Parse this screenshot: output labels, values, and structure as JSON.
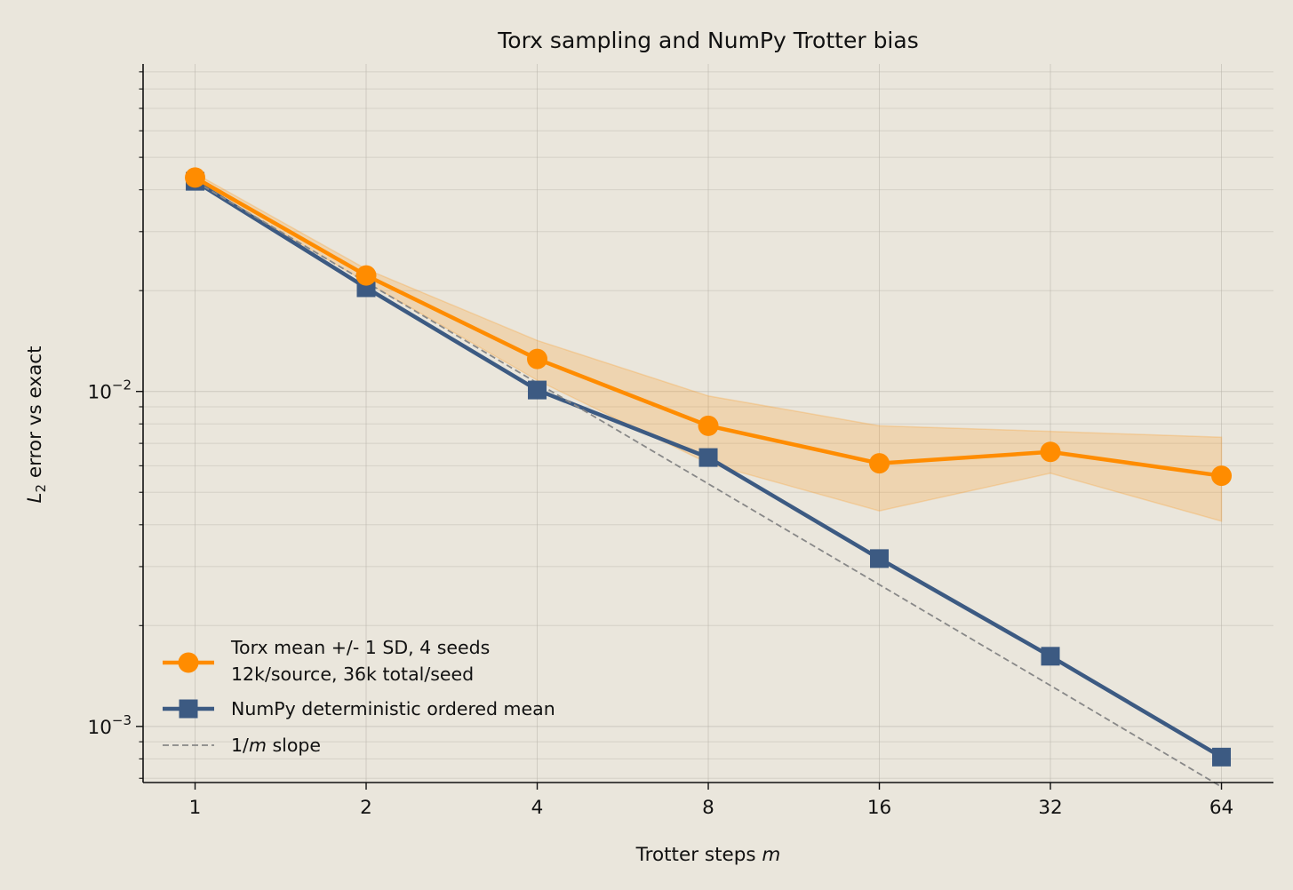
{
  "chart_data": {
    "type": "line",
    "title": "Torx sampling and NumPy Trotter bias",
    "xlabel_main": "Trotter steps ",
    "xlabel_var": "m",
    "ylabel_var": "L",
    "ylabel_sub": "2",
    "ylabel_rest": " error vs exact",
    "x_scale": "log2",
    "y_scale": "log10",
    "x": [
      1,
      2,
      4,
      8,
      16,
      32,
      64
    ],
    "x_tick_labels": [
      "1",
      "2",
      "4",
      "8",
      "16",
      "32",
      "64"
    ],
    "y_major_ticks": [
      {
        "value": 0.01,
        "base": "10",
        "exp": "−2"
      },
      {
        "value": 0.001,
        "base": "10",
        "exp": "−3"
      }
    ],
    "ylim": [
      0.00068,
      0.095
    ],
    "xlim": [
      0.81,
      79
    ],
    "grid": true,
    "legend_position": "lower-left",
    "series": [
      {
        "name": "Torx mean +/- 1 SD, 4 seeds",
        "name_line2": "12k/source, 36k total/seed",
        "color": "#ff8c00",
        "marker": "circle",
        "values": [
          0.0435,
          0.0222,
          0.0125,
          0.0079,
          0.0061,
          0.0066,
          0.0056
        ],
        "band_upper": [
          0.0448,
          0.0232,
          0.0142,
          0.0097,
          0.0079,
          0.0076,
          0.0073
        ],
        "band_lower": [
          0.0422,
          0.0212,
          0.0108,
          0.0061,
          0.0044,
          0.0057,
          0.0041
        ]
      },
      {
        "name": "NumPy deterministic ordered mean",
        "color": "#3c5a82",
        "marker": "square",
        "values": [
          0.0424,
          0.0204,
          0.0101,
          0.00635,
          0.00317,
          0.00162,
          0.00081
        ]
      },
      {
        "name_var": "m",
        "name_prefix": "1/",
        "name_suffix": " slope",
        "color": "#888888",
        "style": "dashed",
        "values": [
          0.0424,
          0.0212,
          0.0106,
          0.0053,
          0.00265,
          0.001325,
          0.00066
        ]
      }
    ]
  }
}
